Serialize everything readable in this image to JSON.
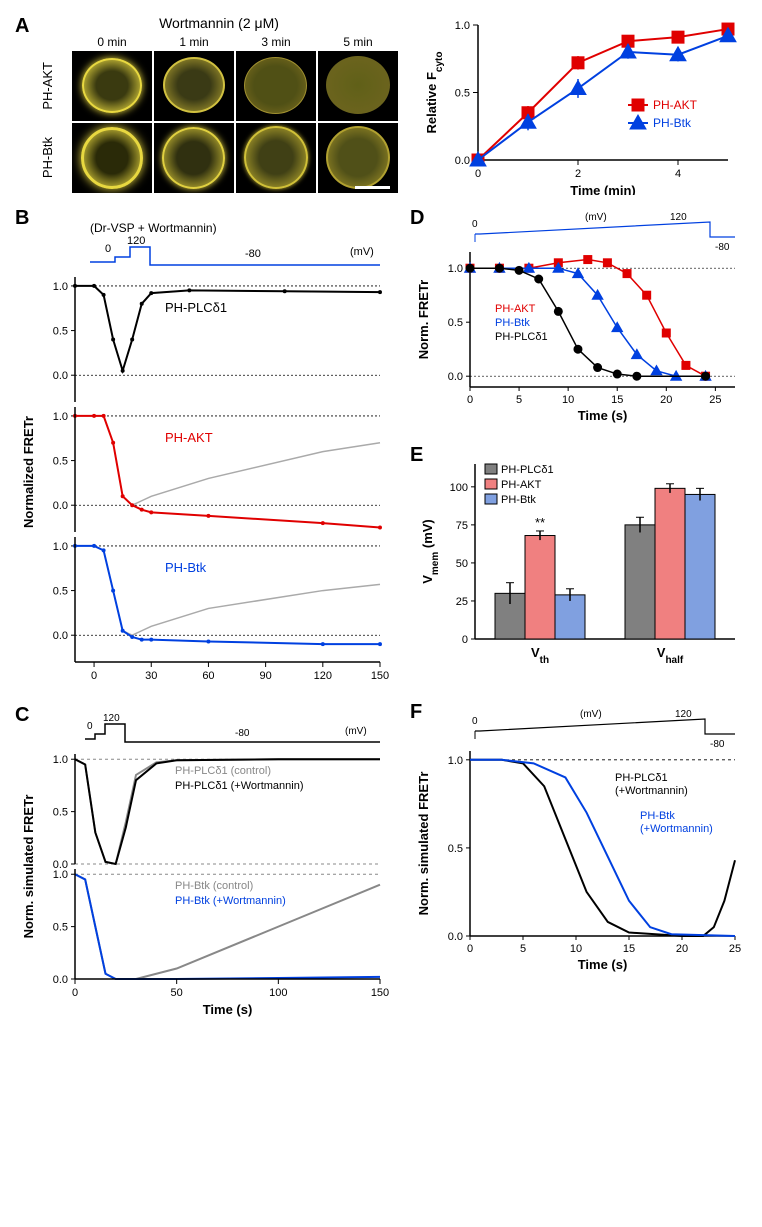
{
  "panelA": {
    "label": "A",
    "title": "Wortmannin (2 μM)",
    "timepoints": [
      "0 min",
      "1 min",
      "3 min",
      "5 min"
    ],
    "rows": [
      "PH-AKT",
      "PH-Btk"
    ],
    "cell_glow_color": "#e8d840",
    "membrane_opacity": [
      [
        1,
        0.8,
        0.5,
        0.3
      ],
      [
        1,
        0.9,
        0.75,
        0.6
      ]
    ],
    "chart": {
      "type": "line",
      "xlabel": "Time (min)",
      "ylabel": "Relative Fcyto",
      "subscript": "cyto",
      "xlim": [
        0,
        5
      ],
      "ylim": [
        0,
        1
      ],
      "xticks": [
        0,
        2,
        4
      ],
      "yticks": [
        0.0,
        0.5,
        1.0
      ],
      "series": [
        {
          "name": "PH-AKT",
          "color": "#e00000",
          "marker": "square",
          "x": [
            0,
            1,
            2,
            3,
            4,
            5
          ],
          "y": [
            0,
            0.35,
            0.72,
            0.88,
            0.91,
            0.97
          ],
          "err": [
            0.02,
            0.05,
            0.05,
            0.04,
            0.03,
            0.02
          ]
        },
        {
          "name": "PH-Btk",
          "color": "#0040e0",
          "marker": "triangle",
          "x": [
            0,
            1,
            2,
            3,
            4,
            5
          ],
          "y": [
            0,
            0.28,
            0.53,
            0.8,
            0.78,
            0.92
          ],
          "err": [
            0.02,
            0.06,
            0.07,
            0.05,
            0.05,
            0.03
          ]
        }
      ],
      "label_fontsize": 13,
      "tick_fontsize": 11,
      "marker_size": 6,
      "line_width": 2,
      "background": "#ffffff",
      "axis_color": "#000000"
    }
  },
  "panelB": {
    "label": "B",
    "title": "(Dr-VSP + Wortmannin)",
    "type": "line",
    "xlabel": "Time (s)",
    "ylabel": "Normalized FRETr",
    "xlim": [
      -10,
      150
    ],
    "ylim": [
      -0.3,
      1.1
    ],
    "xticks": [
      0,
      30,
      60,
      90,
      120,
      150
    ],
    "yticks": [
      0.0,
      0.5,
      1.0
    ],
    "voltage": {
      "color": "#0040e0",
      "label": "(mV)",
      "levels": [
        "0",
        "120",
        "-80"
      ]
    },
    "subplots": [
      {
        "name": "PH-PLCδ1",
        "color": "#000000",
        "x": [
          -10,
          0,
          5,
          10,
          15,
          20,
          25,
          30,
          50,
          100,
          150
        ],
        "y": [
          1,
          1,
          0.9,
          0.4,
          0.05,
          0.4,
          0.8,
          0.92,
          0.95,
          0.94,
          0.93
        ],
        "control_color": "#aaaaaa",
        "control_y": [
          1,
          1,
          0.9,
          0.4,
          0.05,
          0.4,
          0.8,
          0.92,
          0.95,
          0.94,
          0.93
        ]
      },
      {
        "name": "PH-AKT",
        "color": "#e00000",
        "x": [
          -10,
          0,
          5,
          10,
          15,
          20,
          25,
          30,
          60,
          120,
          150
        ],
        "y": [
          1,
          1,
          1,
          0.7,
          0.1,
          0.0,
          -0.05,
          -0.08,
          -0.12,
          -0.2,
          -0.25
        ],
        "control_color": "#aaaaaa",
        "control_y": [
          1,
          1,
          1,
          0.7,
          0.1,
          0.0,
          0.05,
          0.1,
          0.3,
          0.6,
          0.7
        ]
      },
      {
        "name": "PH-Btk",
        "color": "#0040e0",
        "x": [
          -10,
          0,
          5,
          10,
          15,
          20,
          25,
          30,
          60,
          120,
          150
        ],
        "y": [
          1,
          1,
          0.95,
          0.5,
          0.05,
          -0.02,
          -0.05,
          -0.05,
          -0.07,
          -0.1,
          -0.1
        ],
        "control_color": "#aaaaaa",
        "control_y": [
          1,
          1,
          0.95,
          0.5,
          0.05,
          0,
          0.05,
          0.1,
          0.3,
          0.5,
          0.57
        ]
      }
    ],
    "label_fontsize": 13,
    "tick_fontsize": 11,
    "line_width": 1.5
  },
  "panelC": {
    "label": "C",
    "type": "line",
    "xlabel": "Time (s)",
    "ylabel": "Norm. simulated FRETr",
    "xlim": [
      0,
      150
    ],
    "ylim": [
      0,
      1.05
    ],
    "xticks": [
      0,
      50,
      100,
      150
    ],
    "yticks": [
      0.0,
      0.5,
      1.0
    ],
    "voltage": {
      "levels": [
        "0",
        "120",
        "-80"
      ],
      "label": "(mV)"
    },
    "subplots": [
      {
        "series": [
          {
            "name": "PH-PLCδ1 (control)",
            "color": "#888888",
            "x": [
              0,
              5,
              10,
              15,
              20,
              25,
              30,
              40,
              50,
              100,
              150
            ],
            "y": [
              1,
              0.95,
              0.3,
              0.02,
              0.0,
              0.4,
              0.85,
              0.97,
              0.99,
              1,
              1
            ]
          },
          {
            "name": "PH-PLCδ1 (+Wortmannin)",
            "color": "#000000",
            "x": [
              0,
              5,
              10,
              15,
              20,
              25,
              30,
              40,
              50,
              100,
              150
            ],
            "y": [
              1,
              0.95,
              0.3,
              0.02,
              0.0,
              0.35,
              0.8,
              0.96,
              0.99,
              1,
              1
            ]
          }
        ]
      },
      {
        "series": [
          {
            "name": "PH-Btk (control)",
            "color": "#888888",
            "x": [
              0,
              5,
              10,
              15,
              20,
              30,
              50,
              100,
              150
            ],
            "y": [
              1,
              0.95,
              0.5,
              0.05,
              0.0,
              0.0,
              0.1,
              0.5,
              0.9
            ]
          },
          {
            "name": "PH-Btk (+Wortmannin)",
            "color": "#0040e0",
            "x": [
              0,
              5,
              10,
              15,
              20,
              30,
              50,
              100,
              150
            ],
            "y": [
              1,
              0.95,
              0.5,
              0.05,
              0.0,
              0.0,
              0.0,
              0.01,
              0.02
            ]
          }
        ]
      }
    ],
    "label_fontsize": 13,
    "line_width": 2
  },
  "panelD": {
    "label": "D",
    "type": "line",
    "xlabel": "Time (s)",
    "ylabel": "Norm. FRETr",
    "xlim": [
      0,
      27
    ],
    "ylim": [
      -0.1,
      1.15
    ],
    "xticks": [
      0,
      5,
      10,
      15,
      20,
      25
    ],
    "yticks": [
      0.0,
      0.5,
      1.0
    ],
    "voltage": {
      "levels": [
        "0",
        "120",
        "-80"
      ],
      "label": "(mV)",
      "color": "#0040e0"
    },
    "series": [
      {
        "name": "PH-AKT",
        "color": "#e00000",
        "marker": "square",
        "x": [
          0,
          3,
          6,
          9,
          12,
          14,
          16,
          18,
          20,
          22,
          24
        ],
        "y": [
          1,
          1,
          1,
          1.05,
          1.08,
          1.05,
          0.95,
          0.75,
          0.4,
          0.1,
          0.0
        ]
      },
      {
        "name": "PH-Btk",
        "color": "#0040e0",
        "marker": "triangle",
        "x": [
          0,
          3,
          6,
          9,
          11,
          13,
          15,
          17,
          19,
          21,
          24
        ],
        "y": [
          1,
          1,
          1,
          1,
          0.95,
          0.75,
          0.45,
          0.2,
          0.05,
          0.0,
          0.0
        ]
      },
      {
        "name": "PH-PLCδ1",
        "color": "#000000",
        "marker": "circle",
        "x": [
          0,
          3,
          5,
          7,
          9,
          11,
          13,
          15,
          17,
          24
        ],
        "y": [
          1,
          1,
          0.98,
          0.9,
          0.6,
          0.25,
          0.08,
          0.02,
          0.0,
          0.0
        ]
      }
    ],
    "label_fontsize": 13,
    "marker_size": 4
  },
  "panelE": {
    "label": "E",
    "type": "bar",
    "ylabel": "Vmem (mV)",
    "subscript": "mem",
    "ylim": [
      0,
      115
    ],
    "yticks": [
      0,
      25,
      50,
      75,
      100
    ],
    "groups": [
      "Vth",
      "Vhalf"
    ],
    "group_subscripts": [
      "th",
      "half"
    ],
    "series": [
      {
        "name": "PH-PLCδ1",
        "color": "#808080",
        "values": [
          30,
          75
        ],
        "err": [
          7,
          5
        ]
      },
      {
        "name": "PH-AKT",
        "color": "#f08080",
        "values": [
          68,
          99
        ],
        "err": [
          3,
          3
        ],
        "sig": [
          "**",
          ""
        ]
      },
      {
        "name": "PH-Btk",
        "color": "#80a0e0",
        "values": [
          29,
          95
        ],
        "err": [
          4,
          4
        ]
      }
    ],
    "bar_width": 0.25,
    "label_fontsize": 13,
    "tick_fontsize": 11
  },
  "panelF": {
    "label": "F",
    "type": "line",
    "xlabel": "Time (s)",
    "ylabel": "Norm. simulated FRETr",
    "xlim": [
      0,
      25
    ],
    "ylim": [
      0,
      1.05
    ],
    "xticks": [
      0,
      5,
      10,
      15,
      20,
      25
    ],
    "yticks": [
      0.0,
      0.5,
      1.0
    ],
    "voltage": {
      "levels": [
        "0",
        "120",
        "-80"
      ],
      "label": "(mV)"
    },
    "series": [
      {
        "name": "PH-PLCδ1 (+Wortmannin)",
        "color": "#000000",
        "x": [
          0,
          3,
          5,
          7,
          9,
          11,
          13,
          15,
          20,
          22,
          23,
          24,
          25
        ],
        "y": [
          1,
          1,
          0.98,
          0.85,
          0.55,
          0.25,
          0.08,
          0.02,
          0.0,
          0.0,
          0.05,
          0.2,
          0.43
        ]
      },
      {
        "name": "PH-Btk (+Wortmannin)",
        "color": "#0040e0",
        "x": [
          0,
          3,
          6,
          9,
          11,
          13,
          15,
          17,
          19,
          25
        ],
        "y": [
          1,
          1,
          0.98,
          0.9,
          0.7,
          0.45,
          0.2,
          0.05,
          0.01,
          0.0
        ]
      }
    ],
    "label_fontsize": 13,
    "line_width": 2
  }
}
